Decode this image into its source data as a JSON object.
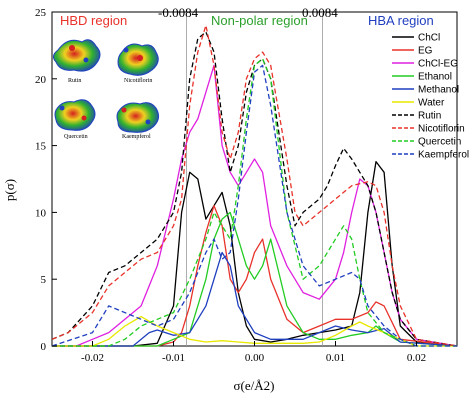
{
  "chart_data": {
    "type": "line",
    "xlabel": "σ(e/Å2)",
    "ylabel": "p(σ)",
    "xlim": [
      -0.025,
      0.025
    ],
    "ylim": [
      0,
      25
    ],
    "xticks": [
      -0.02,
      -0.01,
      0,
      0.01,
      0.02
    ],
    "xtick_labels": [
      "-0.02",
      "-0.01",
      "0.00",
      "0.01",
      "0.02"
    ],
    "yticks": [
      0,
      5,
      10,
      15,
      20,
      25
    ],
    "ytick_labels": [
      "0",
      "5",
      "10",
      "15",
      "20",
      "25"
    ],
    "grid": false,
    "legend_position": "top-right",
    "regions": [
      {
        "label": "HBD region",
        "color": "#e8322a"
      },
      {
        "label": "Non-polar region",
        "color": "#2ca02c"
      },
      {
        "label": "HBA region",
        "color": "#1f3fbf"
      }
    ],
    "thresholds": [
      {
        "x": -0.0084,
        "label": "-0.0084"
      },
      {
        "x": 0.0084,
        "label": "0.0084"
      }
    ],
    "molecules": [
      "Rutin",
      "Nicotiflorin",
      "Quercetin",
      "Kaempferol"
    ],
    "series": [
      {
        "name": "ChCl",
        "color": "#000000",
        "dash": "solid",
        "x": [
          -0.025,
          -0.015,
          -0.012,
          -0.01,
          -0.009,
          -0.008,
          -0.007,
          -0.006,
          -0.005,
          -0.004,
          -0.003,
          -0.002,
          -0.001,
          0.0,
          0.002,
          0.004,
          0.006,
          0.008,
          0.01,
          0.012,
          0.013,
          0.014,
          0.015,
          0.016,
          0.017,
          0.018,
          0.02,
          0.025
        ],
        "y": [
          0,
          0,
          0.2,
          3,
          10,
          13,
          12.5,
          9.5,
          10.5,
          11.5,
          9,
          4,
          1.5,
          0.5,
          0.3,
          0.5,
          0.8,
          1,
          1.2,
          1.5,
          4,
          10,
          13.8,
          13,
          6,
          1.5,
          0.3,
          0
        ]
      },
      {
        "name": "EG",
        "color": "#e8322a",
        "dash": "solid",
        "x": [
          -0.025,
          -0.012,
          -0.01,
          -0.009,
          -0.008,
          -0.007,
          -0.006,
          -0.005,
          -0.004,
          -0.003,
          -0.002,
          -0.001,
          0.0,
          0.001,
          0.002,
          0.004,
          0.006,
          0.008,
          0.01,
          0.012,
          0.014,
          0.015,
          0.016,
          0.018,
          0.025
        ],
        "y": [
          0,
          0,
          0.3,
          1,
          3,
          6,
          8.5,
          10.5,
          9,
          5,
          4,
          5,
          7,
          8,
          5,
          2,
          1,
          1.5,
          2,
          2,
          2.5,
          3.3,
          3,
          0.5,
          0
        ]
      },
      {
        "name": "ChCl-EG",
        "color": "#e020e0",
        "dash": "solid",
        "x": [
          -0.025,
          -0.022,
          -0.02,
          -0.018,
          -0.016,
          -0.014,
          -0.012,
          -0.01,
          -0.009,
          -0.008,
          -0.007,
          -0.006,
          -0.005,
          -0.004,
          -0.003,
          -0.002,
          -0.001,
          0.0,
          0.001,
          0.002,
          0.004,
          0.006,
          0.008,
          0.01,
          0.011,
          0.012,
          0.013,
          0.014,
          0.015,
          0.016,
          0.017,
          0.018,
          0.02,
          0.025
        ],
        "y": [
          0,
          0,
          0.5,
          1,
          2,
          3,
          6,
          11,
          14,
          16,
          17,
          19,
          21,
          15,
          13,
          12,
          13,
          14,
          13,
          9,
          6,
          4,
          3.5,
          5,
          7,
          10,
          12.5,
          12,
          10,
          7,
          4,
          2,
          0.5,
          0
        ]
      },
      {
        "name": "Ethanol",
        "color": "#22cc22",
        "dash": "solid",
        "x": [
          -0.025,
          -0.012,
          -0.01,
          -0.008,
          -0.006,
          -0.005,
          -0.004,
          -0.003,
          -0.002,
          -0.001,
          0.0,
          0.001,
          0.002,
          0.004,
          0.006,
          0.008,
          0.01,
          0.012,
          0.014,
          0.015,
          0.016,
          0.018,
          0.025
        ],
        "y": [
          0,
          0,
          0.5,
          1,
          5,
          8,
          9.5,
          10,
          8,
          6,
          5,
          6,
          8,
          3,
          1,
          0.5,
          0.5,
          0.8,
          1,
          1.5,
          1,
          0.3,
          0
        ]
      },
      {
        "name": "Methanol",
        "color": "#1f3fbf",
        "dash": "solid",
        "x": [
          -0.025,
          -0.015,
          -0.013,
          -0.012,
          -0.011,
          -0.01,
          -0.008,
          -0.006,
          -0.005,
          -0.004,
          -0.003,
          -0.002,
          0.0,
          0.002,
          0.004,
          0.006,
          0.008,
          0.01,
          0.012,
          0.014,
          0.016,
          0.018,
          0.025
        ],
        "y": [
          0,
          0,
          1,
          1.2,
          1,
          0.8,
          1,
          3,
          5,
          7,
          6,
          3,
          1,
          0.5,
          0.5,
          0.5,
          1,
          1.5,
          1.2,
          1,
          1.3,
          0.3,
          0
        ]
      },
      {
        "name": "Water",
        "color": "#e8e800",
        "dash": "solid",
        "x": [
          -0.025,
          -0.02,
          -0.018,
          -0.016,
          -0.014,
          -0.012,
          -0.01,
          -0.008,
          -0.006,
          -0.004,
          -0.002,
          0.0,
          0.002,
          0.004,
          0.006,
          0.008,
          0.01,
          0.012,
          0.013,
          0.014,
          0.016,
          0.018,
          0.02,
          0.025
        ],
        "y": [
          0,
          0,
          0.5,
          1.5,
          2.2,
          1.5,
          1,
          0.5,
          0.3,
          0.4,
          0.3,
          0.2,
          0.2,
          0.2,
          0.2,
          0.3,
          0.8,
          1.5,
          1.8,
          1.5,
          1,
          0.5,
          0,
          0
        ]
      },
      {
        "name": "Rutin",
        "color": "#000000",
        "dash": "dashed",
        "x": [
          -0.025,
          -0.023,
          -0.02,
          -0.018,
          -0.016,
          -0.014,
          -0.012,
          -0.01,
          -0.009,
          -0.008,
          -0.007,
          -0.006,
          -0.005,
          -0.004,
          -0.003,
          -0.002,
          -0.001,
          0.0,
          0.001,
          0.002,
          0.004,
          0.005,
          0.006,
          0.008,
          0.009,
          0.01,
          0.011,
          0.012,
          0.013,
          0.014,
          0.015,
          0.016,
          0.017,
          0.018,
          0.02,
          0.025
        ],
        "y": [
          0.5,
          1,
          3,
          5.5,
          6,
          7,
          8,
          10,
          13,
          20,
          23,
          23.5,
          22,
          17,
          13,
          15,
          19,
          21,
          21.5,
          20,
          12,
          9,
          10,
          11,
          12,
          13.5,
          14.8,
          14,
          13,
          12,
          10,
          7,
          4,
          2,
          0.5,
          0
        ]
      },
      {
        "name": "Nicotiflorin",
        "color": "#e8322a",
        "dash": "dashed",
        "x": [
          -0.025,
          -0.023,
          -0.02,
          -0.018,
          -0.016,
          -0.014,
          -0.012,
          -0.01,
          -0.009,
          -0.008,
          -0.007,
          -0.006,
          -0.005,
          -0.004,
          -0.003,
          -0.002,
          -0.001,
          0.0,
          0.001,
          0.002,
          0.004,
          0.005,
          0.006,
          0.008,
          0.01,
          0.012,
          0.014,
          0.015,
          0.016,
          0.017,
          0.018,
          0.02,
          0.025
        ],
        "y": [
          0.5,
          1,
          2.5,
          4.5,
          5.5,
          6.5,
          7,
          9,
          11,
          18,
          22,
          24,
          21,
          16,
          14,
          16,
          20,
          21.5,
          22,
          21,
          14,
          10,
          9,
          10,
          11,
          12,
          12.3,
          12,
          10,
          6,
          3,
          0.5,
          0
        ]
      },
      {
        "name": "Quercetin",
        "color": "#22cc22",
        "dash": "dashed",
        "x": [
          -0.025,
          -0.018,
          -0.016,
          -0.014,
          -0.012,
          -0.01,
          -0.008,
          -0.006,
          -0.005,
          -0.004,
          -0.003,
          -0.002,
          -0.001,
          0.0,
          0.001,
          0.002,
          0.004,
          0.006,
          0.008,
          0.01,
          0.011,
          0.012,
          0.013,
          0.014,
          0.016,
          0.018,
          0.02,
          0.025
        ],
        "y": [
          0,
          0,
          0.5,
          1.5,
          2,
          2.5,
          5,
          8,
          10,
          9,
          8,
          12,
          17,
          21,
          21.5,
          20,
          10,
          5,
          6,
          8,
          9,
          8,
          5,
          2.5,
          1,
          0.5,
          0,
          0
        ]
      },
      {
        "name": "Kaempferol",
        "color": "#1f3fbf",
        "dash": "dashed",
        "x": [
          -0.025,
          -0.02,
          -0.018,
          -0.016,
          -0.014,
          -0.012,
          -0.01,
          -0.008,
          -0.006,
          -0.005,
          -0.004,
          -0.003,
          -0.002,
          -0.001,
          0.0,
          0.001,
          0.002,
          0.004,
          0.006,
          0.008,
          0.01,
          0.012,
          0.013,
          0.014,
          0.016,
          0.018,
          0.02,
          0.025
        ],
        "y": [
          0,
          1,
          3,
          2.5,
          2,
          1.5,
          2,
          4,
          7,
          8,
          6.5,
          7,
          11,
          16,
          20.5,
          21,
          18,
          10,
          6,
          4.5,
          5,
          5.5,
          5,
          3,
          1.5,
          0.5,
          0,
          0
        ]
      }
    ]
  }
}
